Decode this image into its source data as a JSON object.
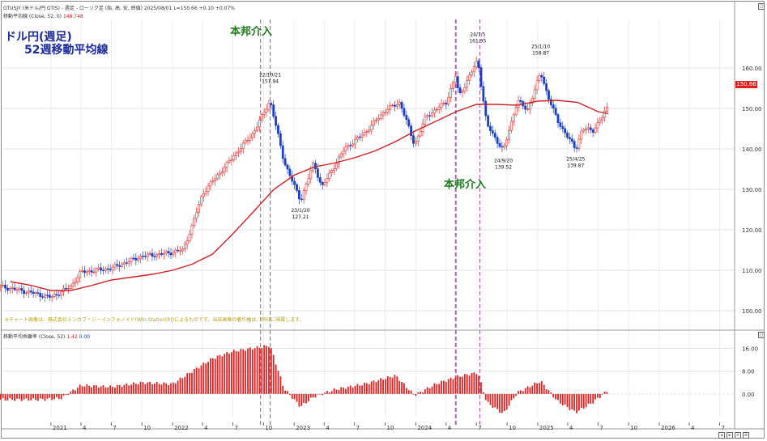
{
  "header": {
    "symbol_line": "GTUSJY (米ドル/円 GTIS) - 週足 - ローソク足 (始, 高, 安, 終値) 2025/08/01 L=150.66 +0.10 +0.07%",
    "ma_line_label": "移動平均線 (Close, 52, 0)",
    "ma_line_value": "148.748"
  },
  "chart_title_line1": "ドル円(週足)",
  "chart_title_line2": "52週移動平均線",
  "intervention_label": "本邦介入",
  "copyright_note": "※チャート画像は、株式会社ミンカブ・ジ・インフォノイド(Win-Station(R))によるものです。当該画像の著作権は、同社に帰属します。",
  "current_price_tag": "150.66",
  "lower_panel": {
    "title": "移動平均乖離率 (Close, 52)",
    "value_a": "1.42",
    "value_b": "0.00"
  },
  "colors": {
    "up": "#e03030",
    "down": "#1a3ec8",
    "ma": "#d02020",
    "intervention": "#a44fb0",
    "deviation_bar": "#dd2222",
    "title": "#1a2a9c",
    "intervention_text": "#1c7a1c"
  },
  "chart_data": [
    {
      "type": "candlestick+line",
      "series": [
        {
          "name": "移動平均線 (Close, 52, 0)",
          "points": [
            [
              "2020-09-01",
              107.2
            ],
            [
              "2020-11-01",
              106.3
            ],
            [
              "2021-01-01",
              105.0
            ],
            [
              "2021-03-01",
              105.0
            ],
            [
              "2021-05-01",
              106.2
            ],
            [
              "2021-07-01",
              107.6
            ],
            [
              "2021-09-01",
              108.3
            ],
            [
              "2021-11-01",
              109.0
            ],
            [
              "2022-01-01",
              110.0
            ],
            [
              "2022-03-01",
              111.5
            ],
            [
              "2022-05-01",
              114.0
            ],
            [
              "2022-07-01",
              119.0
            ],
            [
              "2022-09-01",
              124.5
            ],
            [
              "2022-11-01",
              130.0
            ],
            [
              "2023-01-01",
              133.5
            ],
            [
              "2023-03-01",
              135.5
            ],
            [
              "2023-05-01",
              136.5
            ],
            [
              "2023-07-01",
              137.8
            ],
            [
              "2023-09-01",
              139.5
            ],
            [
              "2023-11-01",
              141.8
            ],
            [
              "2024-01-01",
              144.5
            ],
            [
              "2024-03-01",
              146.8
            ],
            [
              "2024-05-01",
              149.2
            ],
            [
              "2024-07-01",
              151.0
            ],
            [
              "2024-09-01",
              151.0
            ],
            [
              "2024-11-01",
              150.8
            ],
            [
              "2025-01-01",
              151.8
            ],
            [
              "2025-03-01",
              152.0
            ],
            [
              "2025-05-01",
              151.5
            ],
            [
              "2025-07-01",
              149.2
            ],
            [
              "2025-08-01",
              148.7
            ]
          ]
        }
      ],
      "price_path": [
        [
          "2020-08-01",
          106.0
        ],
        [
          "2020-11-01",
          104.5
        ],
        [
          "2021-01-01",
          103.3
        ],
        [
          "2021-03-01",
          106.0
        ],
        [
          "2021-04-01",
          109.5
        ],
        [
          "2021-07-01",
          110.5
        ],
        [
          "2021-10-01",
          113.5
        ],
        [
          "2021-12-01",
          114.0
        ],
        [
          "2022-02-01",
          115.0
        ],
        [
          "2022-03-01",
          121.0
        ],
        [
          "2022-04-01",
          129.0
        ],
        [
          "2022-06-01",
          135.0
        ],
        [
          "2022-07-01",
          138.0
        ],
        [
          "2022-09-01",
          144.0
        ],
        [
          "2022-10-21",
          151.94
        ],
        [
          "2022-12-01",
          137.0
        ],
        [
          "2023-01-20",
          127.21
        ],
        [
          "2023-03-01",
          136.5
        ],
        [
          "2023-03-25",
          130.5
        ],
        [
          "2023-06-01",
          140.0
        ],
        [
          "2023-08-01",
          144.0
        ],
        [
          "2023-10-01",
          149.5
        ],
        [
          "2023-11-15",
          151.5
        ],
        [
          "2023-12-28",
          141.0
        ],
        [
          "2024-02-01",
          148.0
        ],
        [
          "2024-04-01",
          151.5
        ],
        [
          "2024-04-29",
          158.0
        ],
        [
          "2024-05-10",
          153.0
        ],
        [
          "2024-07-05",
          161.95
        ],
        [
          "2024-08-01",
          146.0
        ],
        [
          "2024-09-20",
          139.52
        ],
        [
          "2024-11-01",
          152.0
        ],
        [
          "2024-12-01",
          149.5
        ],
        [
          "2025-01-10",
          158.87
        ],
        [
          "2025-02-01",
          153.0
        ],
        [
          "2025-03-01",
          147.0
        ],
        [
          "2025-04-25",
          139.87
        ],
        [
          "2025-05-15",
          145.0
        ],
        [
          "2025-06-15",
          144.5
        ],
        [
          "2025-07-15",
          148.0
        ],
        [
          "2025-08-01",
          150.66
        ]
      ],
      "annotations": [
        {
          "date_label": "22/10/21",
          "value": "151.94"
        },
        {
          "date_label": "23/1/20",
          "value": "127.21"
        },
        {
          "date_label": "24/7/5",
          "value": "161.95"
        },
        {
          "date_label": "24/9/20",
          "value": "139.52"
        },
        {
          "date_label": "25/1/10",
          "value": "158.87"
        },
        {
          "date_label": "25/4/25",
          "value": "139.87"
        }
      ],
      "interventions": [
        "2022-09-22",
        "2022-10-21",
        "2024-04-29",
        "2024-05-01",
        "2024-07-11"
      ],
      "y_axis": {
        "ticks": [
          100.0,
          110.0,
          120.0,
          130.0,
          140.0,
          150.0,
          160.0
        ],
        "ylim": [
          96,
          172
        ]
      },
      "x_axis": {
        "ticks": [
          {
            "label": "2021",
            "date": "2021-01-01"
          },
          {
            "label": "4",
            "date": "2021-04-01"
          },
          {
            "label": "7",
            "date": "2021-07-01"
          },
          {
            "label": "10",
            "date": "2021-10-01"
          },
          {
            "label": "2022",
            "date": "2022-01-01"
          },
          {
            "label": "4",
            "date": "2022-04-01"
          },
          {
            "label": "7",
            "date": "2022-07-01"
          },
          {
            "label": "10",
            "date": "2022-10-01"
          },
          {
            "label": "2023",
            "date": "2023-01-01"
          },
          {
            "label": "4",
            "date": "2023-04-01"
          },
          {
            "label": "7",
            "date": "2023-07-01"
          },
          {
            "label": "10",
            "date": "2023-10-01"
          },
          {
            "label": "2024",
            "date": "2024-01-01"
          },
          {
            "label": "4",
            "date": "2024-04-01"
          },
          {
            "label": "7",
            "date": "2024-07-01"
          },
          {
            "label": "10",
            "date": "2024-10-01"
          },
          {
            "label": "2025",
            "date": "2025-01-01"
          },
          {
            "label": "4",
            "date": "2025-04-01"
          },
          {
            "label": "7",
            "date": "2025-07-01"
          },
          {
            "label": "10",
            "date": "2025-10-01"
          },
          {
            "label": "2026",
            "date": "2026-01-01"
          },
          {
            "label": "4",
            "date": "2026-04-01"
          },
          {
            "label": "7",
            "date": "2026-07-01"
          }
        ]
      },
      "grid": true
    },
    {
      "type": "bar",
      "series": [
        {
          "name": "移動平均乖離率 (Close, 52)"
        }
      ],
      "y_axis": {
        "ticks": [
          0.0,
          8.0,
          16.0
        ],
        "ylim": [
          -8,
          19
        ]
      },
      "deviation_path": [
        [
          "2020-08-01",
          -2.0
        ],
        [
          "2020-12-01",
          -2.0
        ],
        [
          "2021-02-01",
          -1.5
        ],
        [
          "2021-04-01",
          3.0
        ],
        [
          "2021-07-01",
          2.5
        ],
        [
          "2021-10-01",
          4.0
        ],
        [
          "2022-01-01",
          3.5
        ],
        [
          "2022-03-01",
          8.0
        ],
        [
          "2022-05-01",
          12.5
        ],
        [
          "2022-07-01",
          15.0
        ],
        [
          "2022-10-21",
          17.0
        ],
        [
          "2022-12-01",
          2.0
        ],
        [
          "2023-01-20",
          -4.5
        ],
        [
          "2023-03-01",
          -1.0
        ],
        [
          "2023-05-01",
          1.5
        ],
        [
          "2023-08-01",
          3.5
        ],
        [
          "2023-11-01",
          6.5
        ],
        [
          "2023-12-28",
          -0.5
        ],
        [
          "2024-03-01",
          3.5
        ],
        [
          "2024-05-01",
          6.0
        ],
        [
          "2024-07-05",
          7.5
        ],
        [
          "2024-08-01",
          -3.0
        ],
        [
          "2024-09-20",
          -7.0
        ],
        [
          "2024-11-01",
          0.5
        ],
        [
          "2025-01-10",
          4.5
        ],
        [
          "2025-03-01",
          -2.5
        ],
        [
          "2025-04-25",
          -6.5
        ],
        [
          "2025-06-15",
          -3.0
        ],
        [
          "2025-08-01",
          1.42
        ]
      ]
    }
  ]
}
